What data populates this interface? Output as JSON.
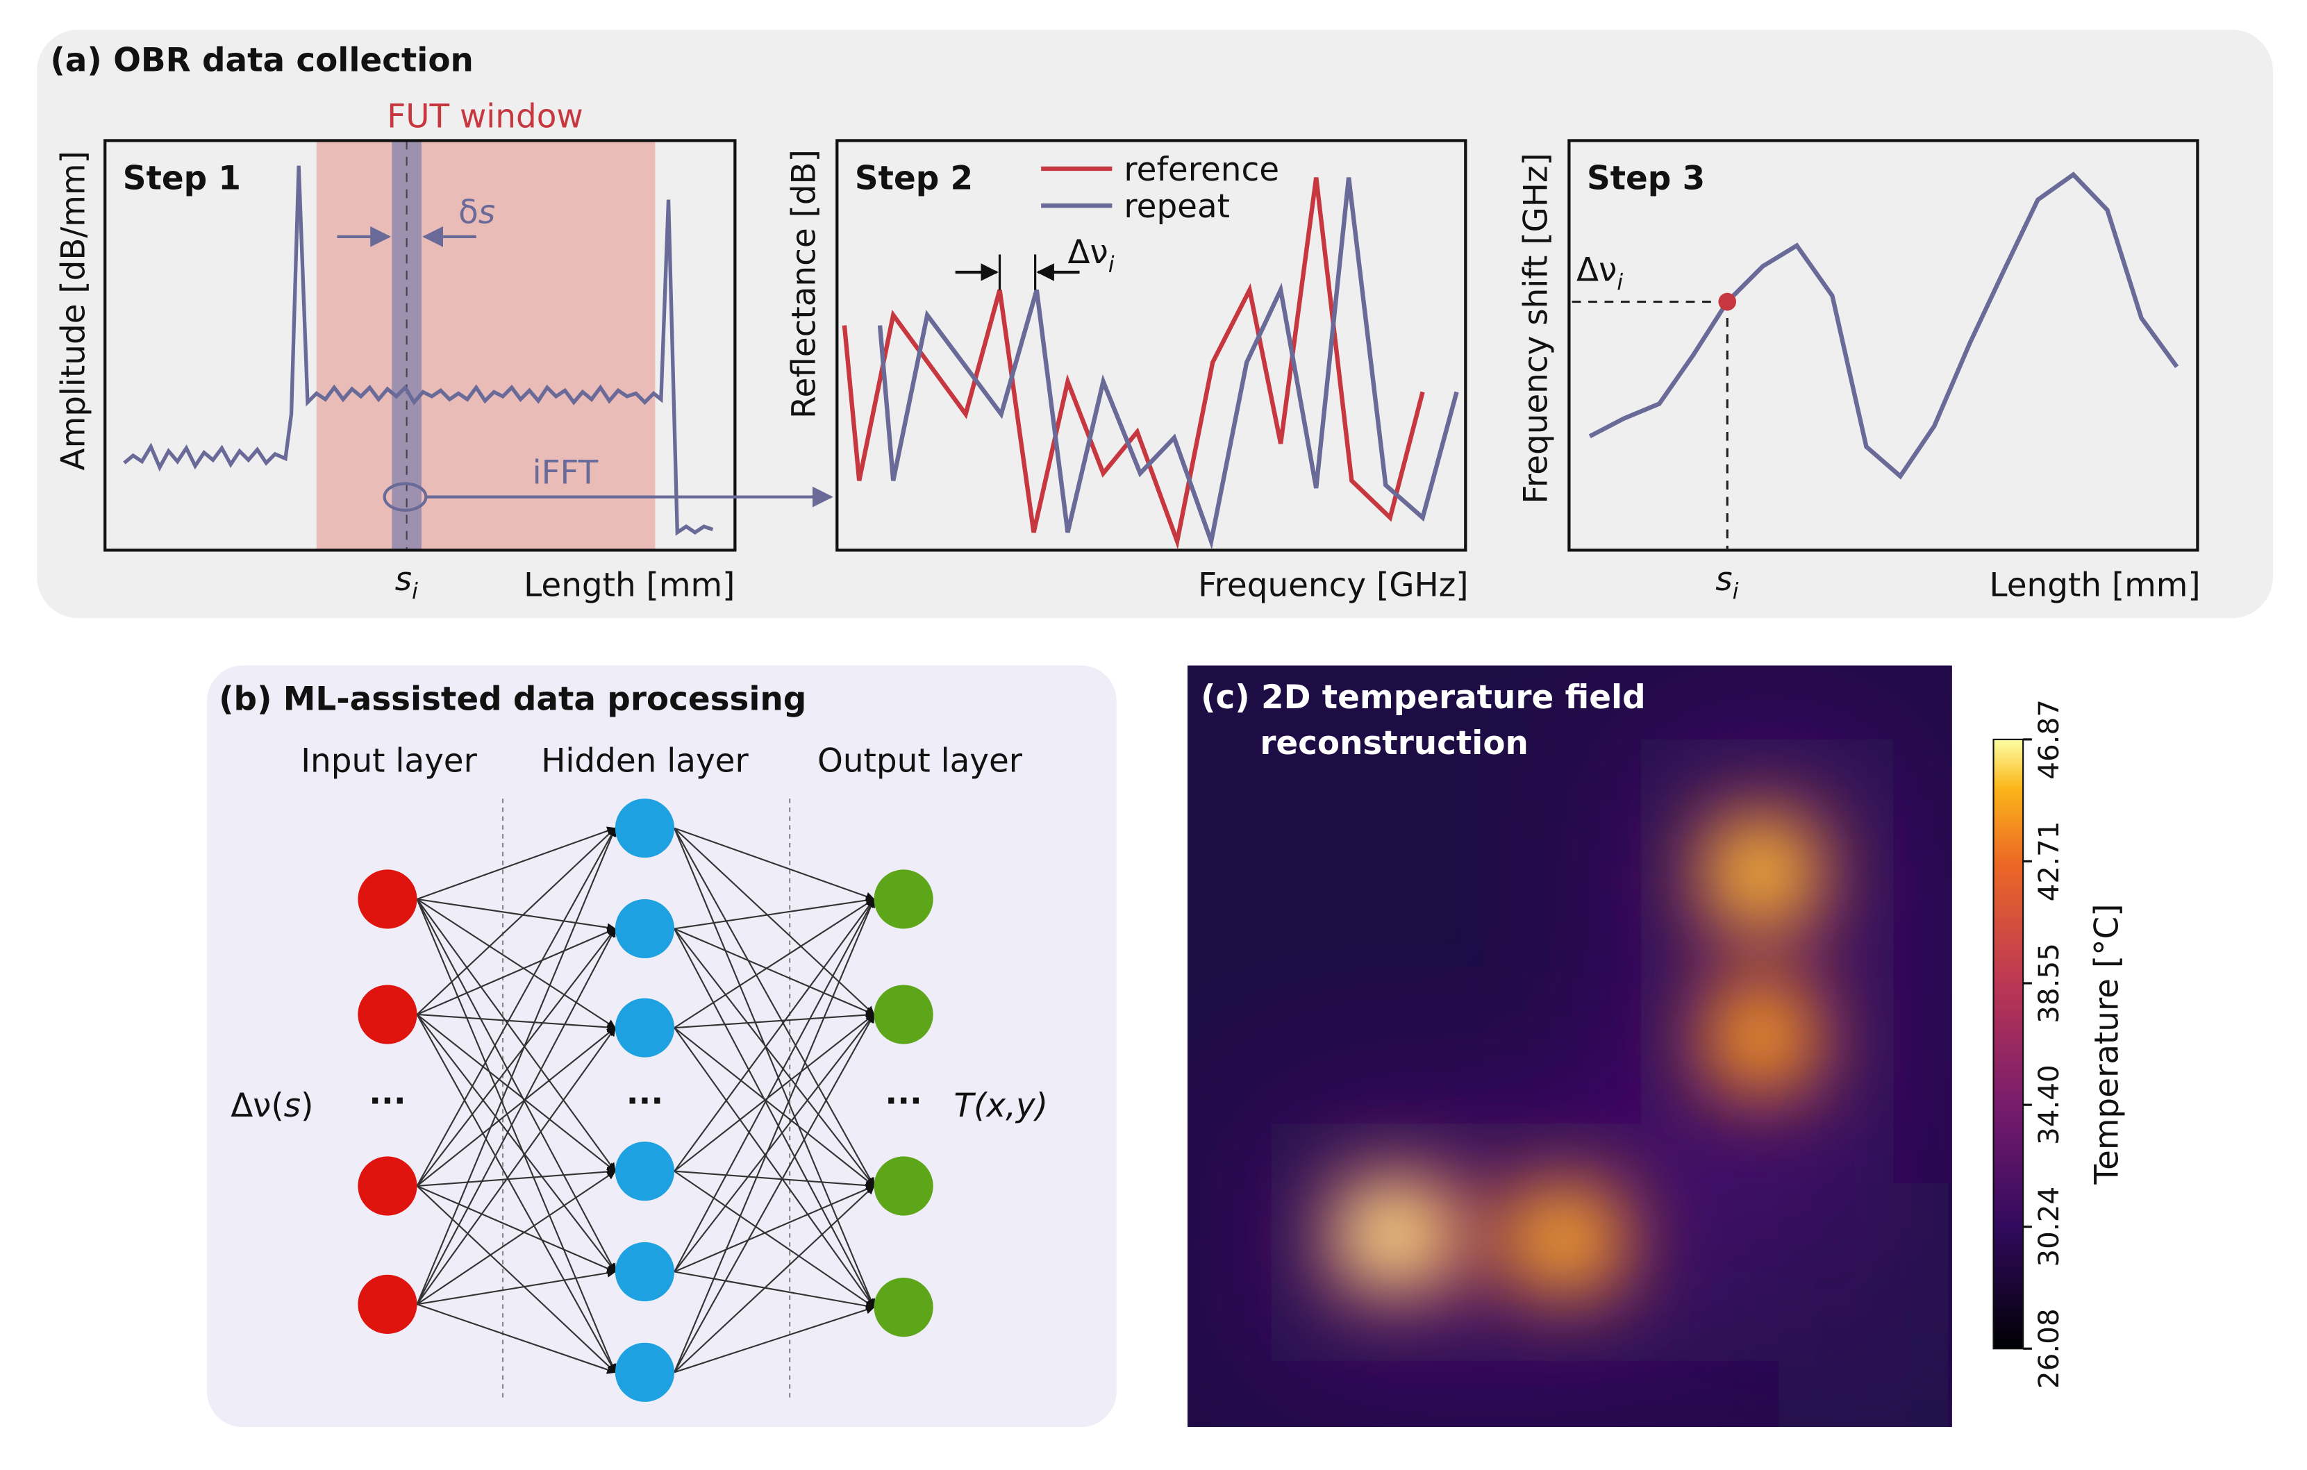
{
  "panel_a": {
    "title": "(a) OBR data collection",
    "step1": {
      "title": "Step 1",
      "ylabel": "Amplitude [dB/mm]",
      "xlabel": "Length [mm]",
      "window": "FUT window",
      "delta_s": {
        "base": "δ",
        "var": "s"
      },
      "s_i": {
        "base": "s",
        "sub": "i"
      },
      "ifft": "iFFT"
    },
    "step2": {
      "title": "Step 2",
      "ylabel": "Reflectance [dB]",
      "xlabel": "Frequency [GHz]",
      "legend": [
        "reference",
        "repeat"
      ],
      "delta_nu": {
        "base": "Δν",
        "sub": "i"
      }
    },
    "step3": {
      "title": "Step 3",
      "ylabel": "Frequency shift [GHz]",
      "xlabel": "Length [mm]",
      "delta_nu": {
        "base": "Δν",
        "sub": "i"
      },
      "s_i": {
        "base": "s",
        "sub": "i"
      }
    }
  },
  "panel_b": {
    "title": "(b) ML-assisted data processing",
    "layers": [
      "Input layer",
      "Hidden layer",
      "Output layer"
    ],
    "ellipsis": "···",
    "input": {
      "base": "Δν(",
      "var": "s",
      "end": ")"
    },
    "output": "T(x,y)"
  },
  "panel_c": {
    "title": [
      "(c) 2D temperature field",
      "reconstruction"
    ],
    "colorbar_label": "Temperature [°C]",
    "clim": [
      26.08,
      46.87
    ],
    "ticks": [
      26.08,
      30.24,
      {
        "value": 34.4,
        "label": "34.40"
      },
      38.55,
      42.71,
      46.87
    ]
  }
}
